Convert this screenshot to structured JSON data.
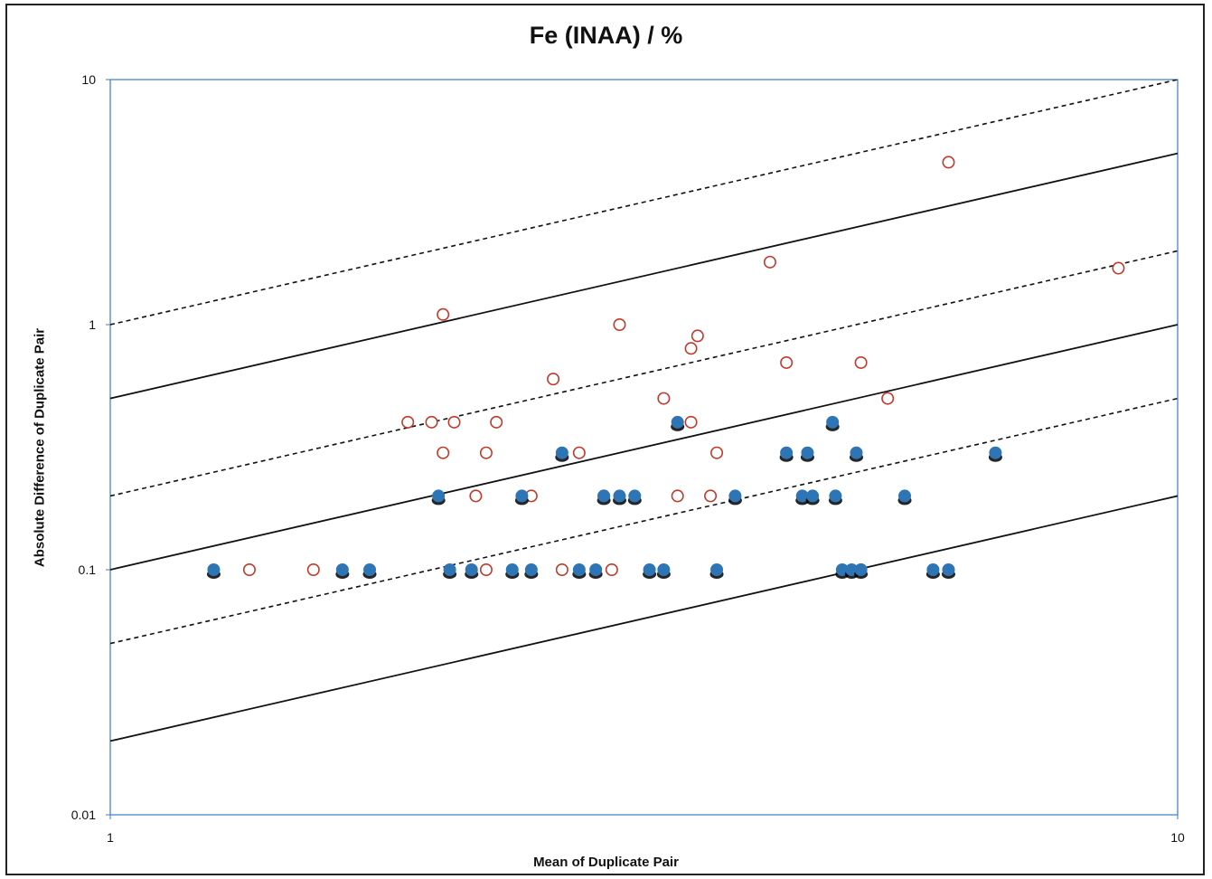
{
  "chart_data": {
    "type": "scatter",
    "title": "Fe (INAA) / %",
    "xlabel": "Mean of Duplicate Pair",
    "ylabel": "Absolute Difference of Duplicate Pair",
    "x_scale": "log",
    "y_scale": "log",
    "xlim": [
      1,
      10
    ],
    "ylim": [
      0.01,
      10
    ],
    "x_ticks": [
      "1",
      "10"
    ],
    "y_ticks": [
      "0.01",
      "0.1",
      "1",
      "10"
    ],
    "grid": false,
    "legend": "none",
    "reference_lines": [
      {
        "style": "dashed",
        "slope": 1.0,
        "from": [
          1,
          1.0
        ],
        "to": [
          10,
          10
        ]
      },
      {
        "style": "solid",
        "slope": 0.5,
        "from": [
          1,
          0.5
        ],
        "to": [
          10,
          5
        ]
      },
      {
        "style": "dashed",
        "slope": 0.2,
        "from": [
          1,
          0.2
        ],
        "to": [
          10,
          2
        ]
      },
      {
        "style": "solid",
        "slope": 0.1,
        "from": [
          1,
          0.1
        ],
        "to": [
          10,
          1
        ]
      },
      {
        "style": "dashed",
        "slope": 0.05,
        "from": [
          1,
          0.05
        ],
        "to": [
          10,
          0.5
        ]
      },
      {
        "style": "solid",
        "slope": 0.02,
        "from": [
          1,
          0.02
        ],
        "to": [
          10,
          0.2
        ]
      }
    ],
    "series": [
      {
        "marker": "filled-circle",
        "color": "#2e75b6",
        "points": [
          [
            1.25,
            0.1
          ],
          [
            1.65,
            0.1
          ],
          [
            1.75,
            0.1
          ],
          [
            2.03,
            0.2
          ],
          [
            2.08,
            0.1
          ],
          [
            2.18,
            0.1
          ],
          [
            2.43,
            0.2
          ],
          [
            2.38,
            0.1
          ],
          [
            2.48,
            0.1
          ],
          [
            2.65,
            0.3
          ],
          [
            2.75,
            0.1
          ],
          [
            2.85,
            0.1
          ],
          [
            2.9,
            0.2
          ],
          [
            3.0,
            0.2
          ],
          [
            3.1,
            0.2
          ],
          [
            3.2,
            0.1
          ],
          [
            3.3,
            0.1
          ],
          [
            3.4,
            0.4
          ],
          [
            3.7,
            0.1
          ],
          [
            3.85,
            0.2
          ],
          [
            4.3,
            0.3
          ],
          [
            4.45,
            0.2
          ],
          [
            4.5,
            0.3
          ],
          [
            4.55,
            0.2
          ],
          [
            4.75,
            0.4
          ],
          [
            4.78,
            0.2
          ],
          [
            4.85,
            0.1
          ],
          [
            4.95,
            0.1
          ],
          [
            5.0,
            0.3
          ],
          [
            5.05,
            0.1
          ],
          [
            5.55,
            0.2
          ],
          [
            5.9,
            0.1
          ],
          [
            6.1,
            0.1
          ],
          [
            6.75,
            0.3
          ]
        ]
      },
      {
        "marker": "open-circle",
        "color": "#c0392b",
        "points": [
          [
            1.35,
            0.1
          ],
          [
            1.55,
            0.1
          ],
          [
            1.9,
            0.4
          ],
          [
            2.0,
            0.4
          ],
          [
            2.05,
            0.3
          ],
          [
            2.05,
            1.1
          ],
          [
            2.1,
            0.4
          ],
          [
            2.2,
            0.2
          ],
          [
            2.25,
            0.3
          ],
          [
            2.25,
            0.1
          ],
          [
            2.3,
            0.4
          ],
          [
            2.48,
            0.2
          ],
          [
            2.6,
            0.6
          ],
          [
            2.65,
            0.1
          ],
          [
            2.75,
            0.3
          ],
          [
            2.9,
            0.2
          ],
          [
            2.95,
            0.1
          ],
          [
            3.0,
            1.0
          ],
          [
            3.3,
            0.5
          ],
          [
            3.4,
            0.2
          ],
          [
            3.5,
            0.4
          ],
          [
            3.5,
            0.8
          ],
          [
            3.55,
            0.9
          ],
          [
            3.65,
            0.2
          ],
          [
            3.7,
            0.3
          ],
          [
            4.15,
            1.8
          ],
          [
            4.3,
            0.7
          ],
          [
            5.05,
            0.7
          ],
          [
            5.05,
            0.1
          ],
          [
            5.35,
            0.5
          ],
          [
            6.1,
            4.6
          ],
          [
            8.8,
            1.7
          ]
        ]
      }
    ]
  }
}
